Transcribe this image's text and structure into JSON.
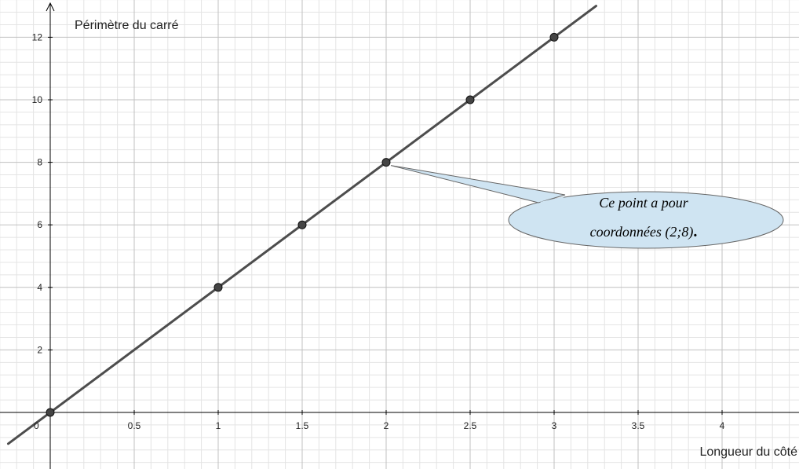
{
  "chart_data": {
    "type": "scatter",
    "xlabel": "Longueur du côté",
    "ylabel": "Périmètre du carré",
    "x_ticks": [
      "0.5",
      "1",
      "1.5",
      "2",
      "2.5",
      "3",
      "3.5",
      "4"
    ],
    "y_ticks": [
      "2",
      "4",
      "6",
      "8",
      "10",
      "12"
    ],
    "origin_label": "0",
    "xlim": [
      -0.25,
      4.5
    ],
    "ylim": [
      -1.75,
      13
    ],
    "grid": true,
    "line": {
      "slope": 4,
      "intercept": 0
    },
    "series": [
      {
        "points": [
          {
            "x": 0,
            "y": 0
          },
          {
            "x": 1,
            "y": 4
          },
          {
            "x": 1.5,
            "y": 6
          },
          {
            "x": 2,
            "y": 8
          },
          {
            "x": 2.5,
            "y": 10
          },
          {
            "x": 3,
            "y": 12
          }
        ]
      }
    ],
    "annotation": {
      "x": 2,
      "y": 8,
      "lines": [
        "Ce point a pour",
        "coordonnées (2;8)",
        "."
      ]
    }
  },
  "colors": {
    "major_grid": "#c0c0c0",
    "minor_grid": "#e4e4e4",
    "axis": "#000000",
    "line": "#4d4d4d",
    "point": "#444444",
    "bubble_fill": "#cfe4f2",
    "bubble_stroke": "#666666"
  }
}
